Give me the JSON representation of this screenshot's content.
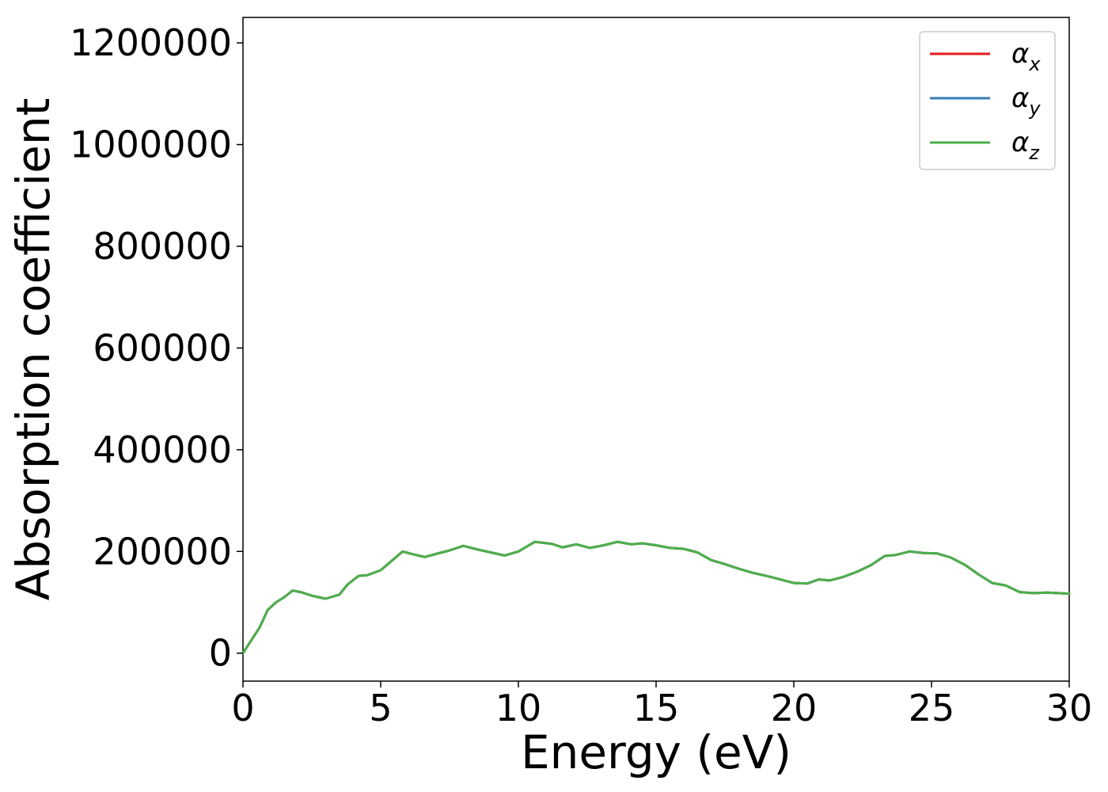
{
  "chart_data": {
    "type": "line",
    "title": "",
    "xlabel": "Energy (eV)",
    "ylabel": "Absorption coefficient",
    "xlim": [
      0,
      30
    ],
    "ylim": [
      -55000,
      1250000
    ],
    "x_ticks": [
      0,
      5,
      10,
      15,
      20,
      25,
      30
    ],
    "y_ticks": [
      0,
      200000,
      400000,
      600000,
      800000,
      1000000,
      1200000
    ],
    "grid": false,
    "legend_position": "top-right",
    "series": [
      {
        "name": "αx",
        "symbol": "α",
        "subscript": "x",
        "color": "#e41a1c",
        "x": [
          0,
          0.3,
          0.6,
          0.9,
          1.2,
          1.5,
          1.8,
          2.1,
          2.5,
          3.0,
          3.5,
          3.8,
          4.2,
          4.5,
          5.0,
          5.5,
          5.8,
          6.2,
          6.6,
          7.0,
          7.5,
          8.0,
          8.5,
          9.0,
          9.5,
          10.0,
          10.6,
          11.2,
          11.6,
          12.1,
          12.6,
          13.1,
          13.6,
          14.1,
          14.5,
          15.0,
          15.5,
          16.0,
          16.5,
          17.0,
          17.5,
          18.0,
          18.5,
          19.0,
          19.5,
          20.0,
          20.5,
          20.9,
          21.3,
          21.8,
          22.3,
          22.8,
          23.3,
          23.7,
          24.2,
          24.7,
          25.2,
          25.7,
          26.2,
          26.7,
          27.2,
          27.7,
          28.2,
          28.7,
          29.2,
          29.6,
          30.0
        ],
        "values": [
          0,
          25000,
          50000,
          85000,
          100000,
          110000,
          123000,
          120000,
          113000,
          107000,
          115000,
          135000,
          152000,
          153000,
          163000,
          186000,
          200000,
          194000,
          189000,
          195000,
          202000,
          211000,
          204000,
          198000,
          192000,
          200000,
          219000,
          215000,
          208000,
          214000,
          207000,
          212000,
          219000,
          214000,
          216000,
          212000,
          207000,
          205000,
          198000,
          183000,
          175000,
          166000,
          158000,
          152000,
          145000,
          138000,
          137000,
          145000,
          143000,
          150000,
          160000,
          173000,
          191000,
          193000,
          200000,
          197000,
          196000,
          188000,
          174000,
          155000,
          138000,
          133000,
          120000,
          118000,
          119000,
          118000,
          117000
        ]
      },
      {
        "name": "αy",
        "symbol": "α",
        "subscript": "y",
        "color": "#377eb8",
        "x": [
          0,
          0.3,
          0.6,
          0.9,
          1.2,
          1.5,
          1.8,
          2.1,
          2.5,
          3.0,
          3.5,
          3.8,
          4.2,
          4.5,
          5.0,
          5.5,
          5.8,
          6.2,
          6.6,
          7.0,
          7.5,
          8.0,
          8.5,
          9.0,
          9.5,
          10.0,
          10.6,
          11.2,
          11.6,
          12.1,
          12.6,
          13.1,
          13.6,
          14.1,
          14.5,
          15.0,
          15.5,
          16.0,
          16.5,
          17.0,
          17.5,
          18.0,
          18.5,
          19.0,
          19.5,
          20.0,
          20.5,
          20.9,
          21.3,
          21.8,
          22.3,
          22.8,
          23.3,
          23.7,
          24.2,
          24.7,
          25.2,
          25.7,
          26.2,
          26.7,
          27.2,
          27.7,
          28.2,
          28.7,
          29.2,
          29.6,
          30.0
        ],
        "values": [
          0,
          25000,
          50000,
          85000,
          100000,
          110000,
          123000,
          120000,
          113000,
          107000,
          115000,
          135000,
          152000,
          153000,
          163000,
          186000,
          200000,
          194000,
          189000,
          195000,
          202000,
          211000,
          204000,
          198000,
          192000,
          200000,
          219000,
          215000,
          208000,
          214000,
          207000,
          212000,
          219000,
          214000,
          216000,
          212000,
          207000,
          205000,
          198000,
          183000,
          175000,
          166000,
          158000,
          152000,
          145000,
          138000,
          137000,
          145000,
          143000,
          150000,
          160000,
          173000,
          191000,
          193000,
          200000,
          197000,
          196000,
          188000,
          174000,
          155000,
          138000,
          133000,
          120000,
          118000,
          119000,
          118000,
          117000
        ]
      },
      {
        "name": "αz",
        "symbol": "α",
        "subscript": "z",
        "color": "#4daf4a",
        "x": [
          0,
          0.3,
          0.6,
          0.9,
          1.2,
          1.5,
          1.8,
          2.1,
          2.5,
          3.0,
          3.5,
          3.8,
          4.2,
          4.5,
          5.0,
          5.5,
          5.8,
          6.2,
          6.6,
          7.0,
          7.5,
          8.0,
          8.5,
          9.0,
          9.5,
          10.0,
          10.6,
          11.2,
          11.6,
          12.1,
          12.6,
          13.1,
          13.6,
          14.1,
          14.5,
          15.0,
          15.5,
          16.0,
          16.5,
          17.0,
          17.5,
          18.0,
          18.5,
          19.0,
          19.5,
          20.0,
          20.5,
          20.9,
          21.3,
          21.8,
          22.3,
          22.8,
          23.3,
          23.7,
          24.2,
          24.7,
          25.2,
          25.7,
          26.2,
          26.7,
          27.2,
          27.7,
          28.2,
          28.7,
          29.2,
          29.6,
          30.0
        ],
        "values": [
          0,
          25000,
          50000,
          85000,
          100000,
          110000,
          123000,
          120000,
          113000,
          107000,
          115000,
          135000,
          152000,
          153000,
          163000,
          186000,
          200000,
          194000,
          189000,
          195000,
          202000,
          211000,
          204000,
          198000,
          192000,
          200000,
          219000,
          215000,
          208000,
          214000,
          207000,
          212000,
          219000,
          214000,
          216000,
          212000,
          207000,
          205000,
          198000,
          183000,
          175000,
          166000,
          158000,
          152000,
          145000,
          138000,
          137000,
          145000,
          143000,
          150000,
          160000,
          173000,
          191000,
          193000,
          200000,
          197000,
          196000,
          188000,
          174000,
          155000,
          138000,
          133000,
          120000,
          118000,
          119000,
          118000,
          117000
        ]
      }
    ]
  }
}
